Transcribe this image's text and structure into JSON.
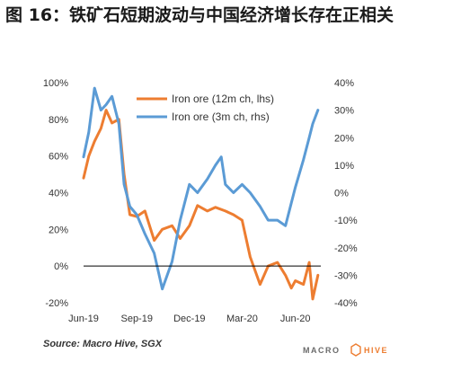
{
  "title": "图 16：铁矿石短期波动与中国经济增长存在正相关",
  "source": "Source: Macro Hive, SGX",
  "logo": {
    "macro": "MACRO",
    "hive": "HIVE"
  },
  "colors": {
    "orange": "#ED7D31",
    "blue": "#5B9BD5",
    "axis": "#000000"
  },
  "chart_data": {
    "type": "line",
    "x_ticks": [
      "Jun-19",
      "Sep-19",
      "Dec-19",
      "Mar-20",
      "Jun-20"
    ],
    "y_left": {
      "min": -20,
      "max": 100,
      "ticks": [
        "100%",
        "80%",
        "60%",
        "40%",
        "20%",
        "0%",
        "-20%"
      ]
    },
    "y_right": {
      "min": -40,
      "max": 40,
      "ticks": [
        "40%",
        "30%",
        "20%",
        "10%",
        "0%",
        "-10%",
        "-20%",
        "-30%",
        "-40%"
      ]
    },
    "legend_position": "top-center",
    "series": [
      {
        "name": "Iron ore (12m ch, lhs)",
        "axis": "left",
        "color": "#ED7D31",
        "x": [
          "2019-06-01",
          "2019-06-10",
          "2019-06-20",
          "2019-07-01",
          "2019-07-10",
          "2019-07-20",
          "2019-08-01",
          "2019-08-10",
          "2019-08-20",
          "2019-09-01",
          "2019-09-15",
          "2019-10-01",
          "2019-10-15",
          "2019-11-01",
          "2019-11-15",
          "2019-12-01",
          "2019-12-15",
          "2020-01-01",
          "2020-01-15",
          "2020-02-01",
          "2020-02-15",
          "2020-03-01",
          "2020-03-15",
          "2020-04-01",
          "2020-04-15",
          "2020-05-01",
          "2020-05-15",
          "2020-05-25",
          "2020-06-01",
          "2020-06-15",
          "2020-06-25",
          "2020-07-01",
          "2020-07-10"
        ],
        "y": [
          48,
          60,
          68,
          75,
          85,
          78,
          80,
          50,
          28,
          27,
          30,
          14,
          20,
          22,
          15,
          22,
          33,
          30,
          32,
          30,
          28,
          25,
          5,
          -10,
          0,
          2,
          -5,
          -12,
          -8,
          -10,
          2,
          -18,
          -5
        ]
      },
      {
        "name": "Iron ore (3m ch, rhs)",
        "axis": "right",
        "color": "#5B9BD5",
        "x": [
          "2019-06-01",
          "2019-06-10",
          "2019-06-20",
          "2019-07-01",
          "2019-07-10",
          "2019-07-20",
          "2019-08-01",
          "2019-08-10",
          "2019-08-20",
          "2019-09-01",
          "2019-09-15",
          "2019-10-01",
          "2019-10-15",
          "2019-11-01",
          "2019-11-15",
          "2019-12-01",
          "2019-12-15",
          "2020-01-01",
          "2020-01-15",
          "2020-01-25",
          "2020-02-01",
          "2020-02-15",
          "2020-03-01",
          "2020-03-15",
          "2020-04-01",
          "2020-04-15",
          "2020-05-01",
          "2020-05-15",
          "2020-06-01",
          "2020-06-15",
          "2020-06-25",
          "2020-07-01",
          "2020-07-10"
        ],
        "y": [
          13,
          22,
          38,
          30,
          32,
          35,
          25,
          3,
          -5,
          -8,
          -15,
          -22,
          -35,
          -25,
          -10,
          3,
          0,
          5,
          10,
          13,
          3,
          0,
          3,
          0,
          -5,
          -10,
          -10,
          -12,
          2,
          12,
          20,
          25,
          30
        ]
      }
    ]
  }
}
